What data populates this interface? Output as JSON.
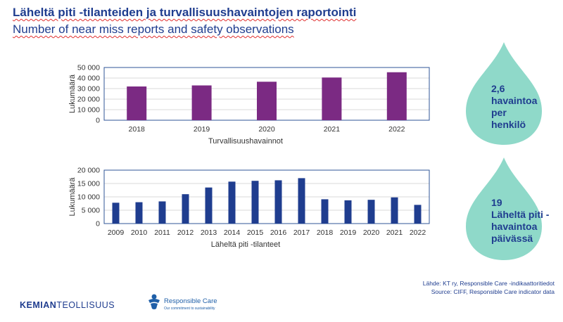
{
  "title_fi": "Läheltä piti -tilanteiden ja turvallisuushavaintojen raportointi",
  "title_en": "Number of near miss reports and safety observations",
  "colors": {
    "observations_bar": "#7b2a83",
    "near_miss_bar": "#1f3d8f",
    "drop": "#8fd9c9",
    "text": "#1f3d8f"
  },
  "chart_data": [
    {
      "type": "bar",
      "categories": [
        "2018",
        "2019",
        "2020",
        "2021",
        "2022"
      ],
      "values": [
        32000,
        33000,
        36500,
        40500,
        45500
      ],
      "xlabel": "Turvallisuushavainnot",
      "ylabel": "Lukumäärä",
      "ylim": [
        0,
        50000
      ],
      "yticks": [
        0,
        10000,
        20000,
        30000,
        40000,
        50000
      ],
      "ytick_labels": [
        "0",
        "10 000",
        "20 000",
        "30 000",
        "40 000",
        "50 000"
      ],
      "grid": true
    },
    {
      "type": "bar",
      "categories": [
        "2009",
        "2010",
        "2011",
        "2012",
        "2013",
        "2014",
        "2015",
        "2016",
        "2017",
        "2018",
        "2019",
        "2020",
        "2021",
        "2022"
      ],
      "values": [
        7800,
        8000,
        8300,
        11000,
        13500,
        15700,
        16000,
        16200,
        17000,
        9100,
        8700,
        8900,
        9800,
        7000
      ],
      "xlabel": "Läheltä piti -tilanteet",
      "ylabel": "Lukumäärä",
      "ylim": [
        0,
        20000
      ],
      "yticks": [
        0,
        5000,
        10000,
        15000,
        20000
      ],
      "ytick_labels": [
        "0",
        "5 000",
        "10 000",
        "15 000",
        "20 000"
      ],
      "grid": true
    }
  ],
  "callouts": [
    {
      "text": "2,6\nhavaintoa\nper\nhenkilö"
    },
    {
      "text": "19\nLäheltä piti -\nhavaintoa\npäivässä"
    }
  ],
  "source_fi": "Lähde: KT ry, Responsible Care -indikaattoritiedot",
  "source_en": "Source: CIFF, Responsible Care indicator data",
  "logo_kemian_bold": "KEMIAN",
  "logo_kemian_rest": "TEOLLISUUS",
  "logo_rc_name": "Responsible Care",
  "logo_rc_tagline": "Our commitment to sustainability"
}
